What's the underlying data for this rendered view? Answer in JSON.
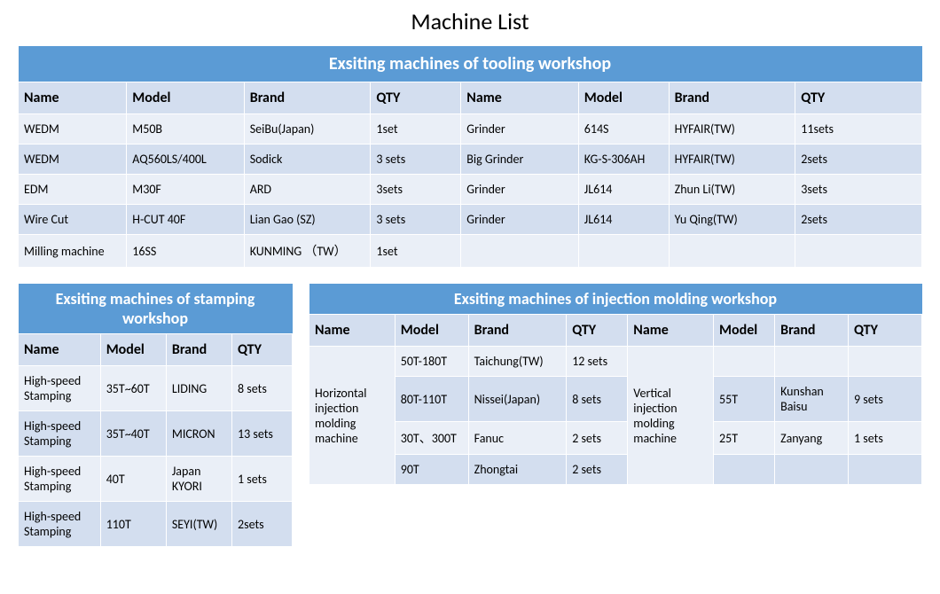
{
  "page_title": "Machine List",
  "colors": {
    "header_bg": "#5b9bd5",
    "header_fg": "#ffffff",
    "colhead_bg": "#d3deef",
    "row_even": "#eaeff7",
    "row_odd": "#d3deef",
    "border": "#ffffff"
  },
  "typography": {
    "title_size": 26,
    "header_size": 20,
    "colhead_size": 16,
    "cell_size": 14,
    "font": "Calibri"
  },
  "table1": {
    "title": "Exsiting machines of tooling workshop",
    "columns": [
      "Name",
      "Model",
      "Brand",
      "QTY",
      "Name",
      "Model",
      "Brand",
      "QTY"
    ],
    "col_widths": [
      "12%",
      "13%",
      "14%",
      "10%",
      "13%",
      "10%",
      "14%",
      "14%"
    ],
    "rows": [
      [
        "WEDM",
        "M50B",
        "SeiBu(Japan)",
        "1set",
        "Grinder",
        "614S",
        "HYFAIR(TW)",
        "11sets"
      ],
      [
        "WEDM",
        "AQ560LS/400L",
        "Sodick",
        "3 sets",
        "Big Grinder",
        "KG-S-306AH",
        "HYFAIR(TW)",
        "2sets"
      ],
      [
        "EDM",
        "M30F",
        "ARD",
        "3sets",
        "Grinder",
        "JL614",
        "Zhun Li(TW)",
        "3sets"
      ],
      [
        "Wire Cut",
        "H-CUT 40F",
        "Lian Gao (SZ)",
        "3 sets",
        "Grinder",
        "JL614",
        "Yu Qing(TW)",
        "2sets"
      ],
      [
        "Milling machine",
        "16SS",
        "KUNMING （TW）",
        "1set",
        "",
        "",
        "",
        ""
      ]
    ]
  },
  "table2": {
    "title": "Exsiting machines of stamping workshop",
    "columns": [
      "Name",
      "Model",
      "Brand",
      "QTY"
    ],
    "col_widths": [
      "30%",
      "24%",
      "24%",
      "22%"
    ],
    "rows": [
      [
        "High-speed Stamping",
        "35T~60T",
        "LIDING",
        "8 sets"
      ],
      [
        "High-speed Stamping",
        "35T~40T",
        "MICRON",
        "13 sets"
      ],
      [
        "High-speed Stamping",
        "40T",
        "Japan KYORI",
        "1 sets"
      ],
      [
        "High-speed Stamping",
        "110T",
        "SEYI(TW)",
        "2sets"
      ]
    ]
  },
  "table3": {
    "title": "Exsiting machines of injection molding workshop",
    "columns": [
      "Name",
      "Model",
      "Brand",
      "QTY",
      "Name",
      "Model",
      "Brand",
      "QTY"
    ],
    "col_widths": [
      "14%",
      "12%",
      "16%",
      "10%",
      "14%",
      "10%",
      "12%",
      "12%"
    ],
    "span_left": {
      "text": "Horizontal injection molding machine",
      "rowspan": 4
    },
    "span_right": {
      "text": "Vertical injection molding machine",
      "rowspan": 4
    },
    "rows": [
      [
        "",
        "50T-180T",
        "Taichung(TW)",
        "12 sets",
        "",
        "",
        "",
        ""
      ],
      [
        "",
        "80T-110T",
        "Nissei(Japan)",
        "8 sets",
        "",
        "55T",
        "Kunshan Baisu",
        "9 sets"
      ],
      [
        "",
        "30T、300T",
        "Fanuc",
        "2 sets",
        "",
        "25T",
        "Zanyang",
        "1 sets"
      ],
      [
        "",
        "90T",
        "Zhongtai",
        "2 sets",
        "",
        "",
        "",
        ""
      ]
    ]
  }
}
